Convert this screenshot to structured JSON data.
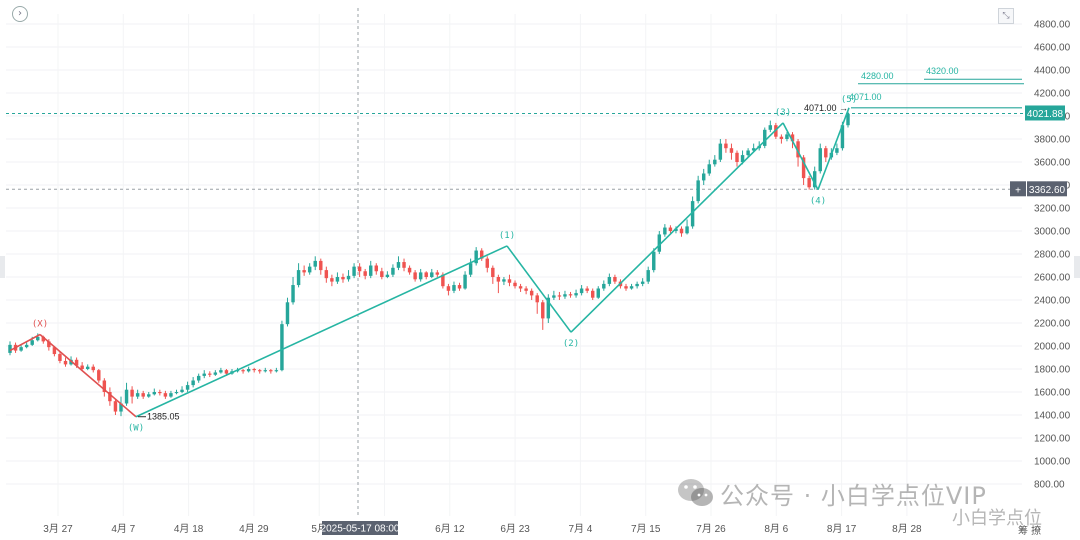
{
  "chart_data": {
    "type": "candlestick",
    "y_axis": {
      "ylim": [
        800,
        4800
      ],
      "ticks": [
        "4800.00",
        "4600.00",
        "4400.00",
        "4200.00",
        "4000.00",
        "3800.00",
        "3600.00",
        "3400.00",
        "3200.00",
        "3000.00",
        "2800.00",
        "2600.00",
        "2400.00",
        "2200.00",
        "2000.00",
        "1800.00",
        "1600.00",
        "1400.00",
        "1200.00",
        "1000.00",
        "800.00"
      ]
    },
    "x_axis": {
      "ticks": [
        "3月 27",
        "4月 7",
        "4月 18",
        "4月 29",
        "5月",
        "6月 1",
        "6月 12",
        "6月 23",
        "7月 4",
        "7月 15",
        "7月 26",
        "8月 6",
        "8月 17",
        "8月 28"
      ],
      "crosshair_label": "2025-05-17 08:00"
    },
    "price_tags": {
      "current": "4021.88",
      "crosshair": "3362.60"
    },
    "wave_points": [
      {
        "label": "(X)",
        "value": 2100
      },
      {
        "label": "(W)",
        "value": 1385
      },
      {
        "label": "(1)",
        "value": 2870
      },
      {
        "label": "(2)",
        "value": 2120
      },
      {
        "label": "(3)",
        "value": 3940
      },
      {
        "label": "(4)",
        "value": 3360
      },
      {
        "label": "(5)",
        "value": 4071
      }
    ],
    "annotations": {
      "low": "1385.05",
      "high_left": "4071.00",
      "high_right": "4071.00",
      "target1": "4280.00",
      "target2": "4320.00"
    },
    "candles": [
      [
        1940,
        2010,
        2040,
        1920
      ],
      [
        2010,
        1960,
        2030,
        1940
      ],
      [
        1960,
        1990,
        2010,
        1950
      ],
      [
        1990,
        2010,
        2030,
        1980
      ],
      [
        2010,
        2050,
        2080,
        2000
      ],
      [
        2050,
        2080,
        2110,
        2040
      ],
      [
        2080,
        2040,
        2090,
        2020
      ],
      [
        2040,
        1990,
        2060,
        1960
      ],
      [
        1990,
        1930,
        2000,
        1910
      ],
      [
        1930,
        1870,
        1950,
        1850
      ],
      [
        1870,
        1840,
        1900,
        1820
      ],
      [
        1840,
        1880,
        1910,
        1830
      ],
      [
        1880,
        1830,
        1900,
        1810
      ],
      [
        1830,
        1800,
        1860,
        1790
      ],
      [
        1800,
        1820,
        1840,
        1790
      ],
      [
        1820,
        1790,
        1840,
        1770
      ],
      [
        1790,
        1700,
        1800,
        1680
      ],
      [
        1700,
        1600,
        1720,
        1560
      ],
      [
        1600,
        1520,
        1640,
        1480
      ],
      [
        1520,
        1430,
        1540,
        1400
      ],
      [
        1430,
        1500,
        1560,
        1390
      ],
      [
        1500,
        1620,
        1680,
        1480
      ],
      [
        1620,
        1560,
        1650,
        1500
      ],
      [
        1560,
        1590,
        1620,
        1540
      ],
      [
        1590,
        1560,
        1610,
        1540
      ],
      [
        1560,
        1580,
        1600,
        1550
      ],
      [
        1580,
        1600,
        1630,
        1570
      ],
      [
        1600,
        1590,
        1620,
        1570
      ],
      [
        1590,
        1560,
        1610,
        1540
      ],
      [
        1560,
        1590,
        1610,
        1550
      ],
      [
        1590,
        1600,
        1620,
        1580
      ],
      [
        1600,
        1620,
        1650,
        1590
      ],
      [
        1620,
        1660,
        1690,
        1600
      ],
      [
        1660,
        1700,
        1730,
        1640
      ],
      [
        1700,
        1740,
        1760,
        1680
      ],
      [
        1740,
        1760,
        1790,
        1720
      ],
      [
        1760,
        1750,
        1780,
        1730
      ],
      [
        1750,
        1770,
        1790,
        1740
      ],
      [
        1770,
        1790,
        1810,
        1760
      ],
      [
        1790,
        1760,
        1800,
        1740
      ],
      [
        1760,
        1780,
        1800,
        1750
      ],
      [
        1780,
        1790,
        1810,
        1770
      ],
      [
        1790,
        1780,
        1800,
        1760
      ],
      [
        1780,
        1800,
        1820,
        1770
      ],
      [
        1800,
        1790,
        1810,
        1770
      ],
      [
        1790,
        1780,
        1800,
        1760
      ],
      [
        1780,
        1790,
        1810,
        1770
      ],
      [
        1790,
        1780,
        1800,
        1760
      ],
      [
        1780,
        1790,
        1810,
        1770
      ],
      [
        1790,
        2190,
        2220,
        1780
      ],
      [
        2190,
        2380,
        2420,
        2170
      ],
      [
        2380,
        2530,
        2600,
        2360
      ],
      [
        2530,
        2660,
        2720,
        2510
      ],
      [
        2660,
        2640,
        2700,
        2610
      ],
      [
        2640,
        2690,
        2720,
        2620
      ],
      [
        2690,
        2740,
        2780,
        2660
      ],
      [
        2740,
        2660,
        2760,
        2620
      ],
      [
        2660,
        2590,
        2690,
        2550
      ],
      [
        2590,
        2560,
        2620,
        2520
      ],
      [
        2560,
        2600,
        2640,
        2540
      ],
      [
        2600,
        2580,
        2630,
        2550
      ],
      [
        2580,
        2610,
        2660,
        2560
      ],
      [
        2610,
        2690,
        2720,
        2590
      ],
      [
        2690,
        2650,
        2720,
        2600
      ],
      [
        2650,
        2610,
        2670,
        2580
      ],
      [
        2610,
        2700,
        2740,
        2590
      ],
      [
        2700,
        2650,
        2720,
        2620
      ],
      [
        2650,
        2600,
        2680,
        2580
      ],
      [
        2600,
        2620,
        2650,
        2590
      ],
      [
        2620,
        2680,
        2710,
        2600
      ],
      [
        2680,
        2730,
        2780,
        2660
      ],
      [
        2730,
        2680,
        2760,
        2650
      ],
      [
        2680,
        2640,
        2700,
        2620
      ],
      [
        2640,
        2580,
        2660,
        2560
      ],
      [
        2580,
        2640,
        2670,
        2560
      ],
      [
        2640,
        2600,
        2650,
        2580
      ],
      [
        2600,
        2640,
        2670,
        2590
      ],
      [
        2640,
        2620,
        2660,
        2600
      ],
      [
        2620,
        2520,
        2640,
        2500
      ],
      [
        2520,
        2480,
        2540,
        2440
      ],
      [
        2480,
        2530,
        2560,
        2460
      ],
      [
        2530,
        2500,
        2550,
        2480
      ],
      [
        2500,
        2620,
        2650,
        2490
      ],
      [
        2620,
        2720,
        2760,
        2600
      ],
      [
        2720,
        2830,
        2860,
        2700
      ],
      [
        2830,
        2760,
        2850,
        2740
      ],
      [
        2760,
        2680,
        2780,
        2640
      ],
      [
        2680,
        2600,
        2700,
        2540
      ],
      [
        2600,
        2560,
        2620,
        2460
      ],
      [
        2560,
        2580,
        2600,
        2530
      ],
      [
        2580,
        2550,
        2620,
        2520
      ],
      [
        2550,
        2520,
        2570,
        2500
      ],
      [
        2520,
        2500,
        2540,
        2470
      ],
      [
        2500,
        2480,
        2520,
        2450
      ],
      [
        2480,
        2440,
        2500,
        2400
      ],
      [
        2440,
        2380,
        2460,
        2280
      ],
      [
        2380,
        2240,
        2400,
        2140
      ],
      [
        2240,
        2420,
        2450,
        2200
      ],
      [
        2420,
        2440,
        2480,
        2400
      ],
      [
        2440,
        2430,
        2470,
        2400
      ],
      [
        2430,
        2450,
        2480,
        2410
      ],
      [
        2450,
        2440,
        2470,
        2420
      ],
      [
        2440,
        2460,
        2490,
        2420
      ],
      [
        2460,
        2500,
        2530,
        2440
      ],
      [
        2500,
        2480,
        2520,
        2460
      ],
      [
        2480,
        2420,
        2500,
        2400
      ],
      [
        2420,
        2500,
        2520,
        2410
      ],
      [
        2500,
        2540,
        2570,
        2480
      ],
      [
        2540,
        2600,
        2630,
        2520
      ],
      [
        2600,
        2560,
        2620,
        2540
      ],
      [
        2560,
        2520,
        2580,
        2500
      ],
      [
        2520,
        2500,
        2540,
        2480
      ],
      [
        2500,
        2520,
        2540,
        2490
      ],
      [
        2520,
        2540,
        2560,
        2500
      ],
      [
        2540,
        2560,
        2590,
        2520
      ],
      [
        2560,
        2660,
        2690,
        2540
      ],
      [
        2660,
        2820,
        2850,
        2640
      ],
      [
        2820,
        2970,
        3000,
        2800
      ],
      [
        2970,
        3030,
        3060,
        2950
      ],
      [
        3030,
        3000,
        3050,
        2980
      ],
      [
        3000,
        3020,
        3040,
        2980
      ],
      [
        3020,
        2980,
        3040,
        2950
      ],
      [
        2980,
        3040,
        3100,
        2970
      ],
      [
        3040,
        3260,
        3300,
        3020
      ],
      [
        3260,
        3440,
        3480,
        3240
      ],
      [
        3440,
        3500,
        3540,
        3400
      ],
      [
        3500,
        3580,
        3620,
        3480
      ],
      [
        3580,
        3620,
        3660,
        3560
      ],
      [
        3620,
        3760,
        3800,
        3600
      ],
      [
        3760,
        3720,
        3800,
        3680
      ],
      [
        3720,
        3680,
        3760,
        3620
      ],
      [
        3680,
        3600,
        3700,
        3560
      ],
      [
        3600,
        3660,
        3700,
        3580
      ],
      [
        3660,
        3700,
        3720,
        3640
      ],
      [
        3700,
        3720,
        3760,
        3690
      ],
      [
        3720,
        3740,
        3780,
        3700
      ],
      [
        3740,
        3880,
        3900,
        3720
      ],
      [
        3880,
        3920,
        3960,
        3860
      ],
      [
        3920,
        3820,
        3940,
        3800
      ],
      [
        3820,
        3800,
        3840,
        3760
      ],
      [
        3800,
        3840,
        3860,
        3780
      ],
      [
        3840,
        3780,
        3860,
        3720
      ],
      [
        3780,
        3640,
        3800,
        3560
      ],
      [
        3640,
        3460,
        3660,
        3400
      ],
      [
        3460,
        3380,
        3480,
        3360
      ],
      [
        3380,
        3520,
        3560,
        3360
      ],
      [
        3520,
        3720,
        3760,
        3500
      ],
      [
        3720,
        3640,
        3740,
        3600
      ],
      [
        3640,
        3680,
        3720,
        3620
      ],
      [
        3680,
        3720,
        3760,
        3660
      ],
      [
        3720,
        3920,
        3950,
        3700
      ],
      [
        3920,
        4020,
        4050,
        3900
      ]
    ],
    "grid": true,
    "dashed_reference_lines": true
  },
  "branding": {
    "watermark": "公众号 · 小白学点位VIP",
    "watermark_secondary": "小白学点位",
    "bottom_right_text": "筹 撩",
    "corner_left_icon": "chevron-right-circle-icon",
    "corner_right_icon": "expand-icon"
  },
  "colors": {
    "up": "#26a69a",
    "down": "#ef5350",
    "wave_up": "#26b5a3",
    "wave_down": "#e05050",
    "tag_current": "#26a69a",
    "tag_crosshair": "#5b6270",
    "crosshair": "#9aa0a6",
    "target_line": "#26a69a"
  }
}
